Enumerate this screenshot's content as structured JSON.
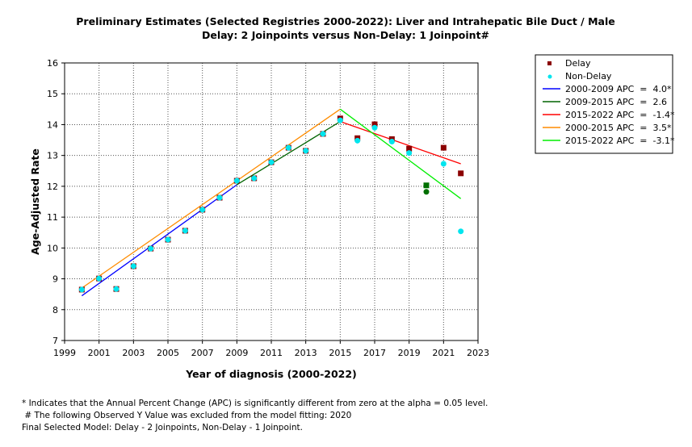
{
  "chart_data": {
    "type": "scatter",
    "title": "Preliminary Estimates (Selected Registries 2000-2022): Liver and Intrahepatic Bile Duct / Male",
    "subtitle": "Delay: 2 Joinpoints  versus  Non-Delay: 1 Joinpoint#",
    "xlabel": "Year of diagnosis (2000-2022)",
    "ylabel": "Age-Adjusted Rate",
    "xlim": [
      1999,
      2023
    ],
    "ylim": [
      7,
      16
    ],
    "xticks": [
      1999,
      2001,
      2003,
      2005,
      2007,
      2009,
      2011,
      2013,
      2015,
      2017,
      2019,
      2021,
      2023
    ],
    "yticks": [
      7,
      8,
      9,
      10,
      11,
      12,
      13,
      14,
      15,
      16
    ],
    "grid": true,
    "legend_position": "right",
    "x": [
      2000,
      2001,
      2002,
      2003,
      2004,
      2005,
      2006,
      2007,
      2008,
      2009,
      2010,
      2011,
      2012,
      2013,
      2014,
      2015,
      2016,
      2017,
      2018,
      2019,
      2020,
      2021,
      2022
    ],
    "excluded_year": 2020,
    "series": [
      {
        "name": "Delay",
        "kind": "points",
        "color": "#8b0000",
        "values": [
          8.65,
          9.01,
          8.67,
          9.41,
          9.98,
          10.27,
          10.56,
          11.24,
          11.63,
          12.18,
          12.26,
          12.78,
          13.25,
          13.15,
          13.7,
          14.2,
          13.56,
          14.01,
          13.53,
          13.22,
          12.03,
          13.25,
          12.42
        ]
      },
      {
        "name": "Non-Delay",
        "kind": "points",
        "color": "#00e5ee",
        "values": [
          8.65,
          9.01,
          8.67,
          9.41,
          9.98,
          10.27,
          10.56,
          11.24,
          11.63,
          12.18,
          12.26,
          12.78,
          13.25,
          13.15,
          13.7,
          14.14,
          13.48,
          13.9,
          13.45,
          13.08,
          11.82,
          12.73,
          10.54
        ]
      },
      {
        "name": "2000-2009 APC  =  4.0*",
        "kind": "line",
        "color": "#0000ff",
        "x": [
          2000,
          2009
        ],
        "values": [
          8.45,
          12.05
        ]
      },
      {
        "name": "2009-2015 APC  =  2.6",
        "kind": "line",
        "color": "#006400",
        "x": [
          2009,
          2015
        ],
        "values": [
          12.05,
          14.1
        ]
      },
      {
        "name": "2015-2022 APC  =  -1.4*",
        "kind": "line",
        "color": "#ff0000",
        "x": [
          2015,
          2022
        ],
        "values": [
          14.1,
          12.73
        ]
      },
      {
        "name": "2000-2015 APC  =  3.5*",
        "kind": "line",
        "color": "#ff8c00",
        "x": [
          2000,
          2015
        ],
        "values": [
          8.7,
          14.5
        ]
      },
      {
        "name": "2015-2022 APC  =  -3.1*",
        "kind": "line",
        "color": "#00ee00",
        "x": [
          2015,
          2022
        ],
        "values": [
          14.5,
          11.6
        ]
      }
    ],
    "excluded_color": "#007000"
  },
  "footnotes": [
    "* Indicates that the Annual Percent Change (APC) is significantly different from zero at the alpha = 0.05 level.",
    " # The following Observed Y Value was excluded from the model fitting: 2020",
    "Final Selected Model: Delay - 2 Joinpoints, Non-Delay - 1 Joinpoint."
  ]
}
